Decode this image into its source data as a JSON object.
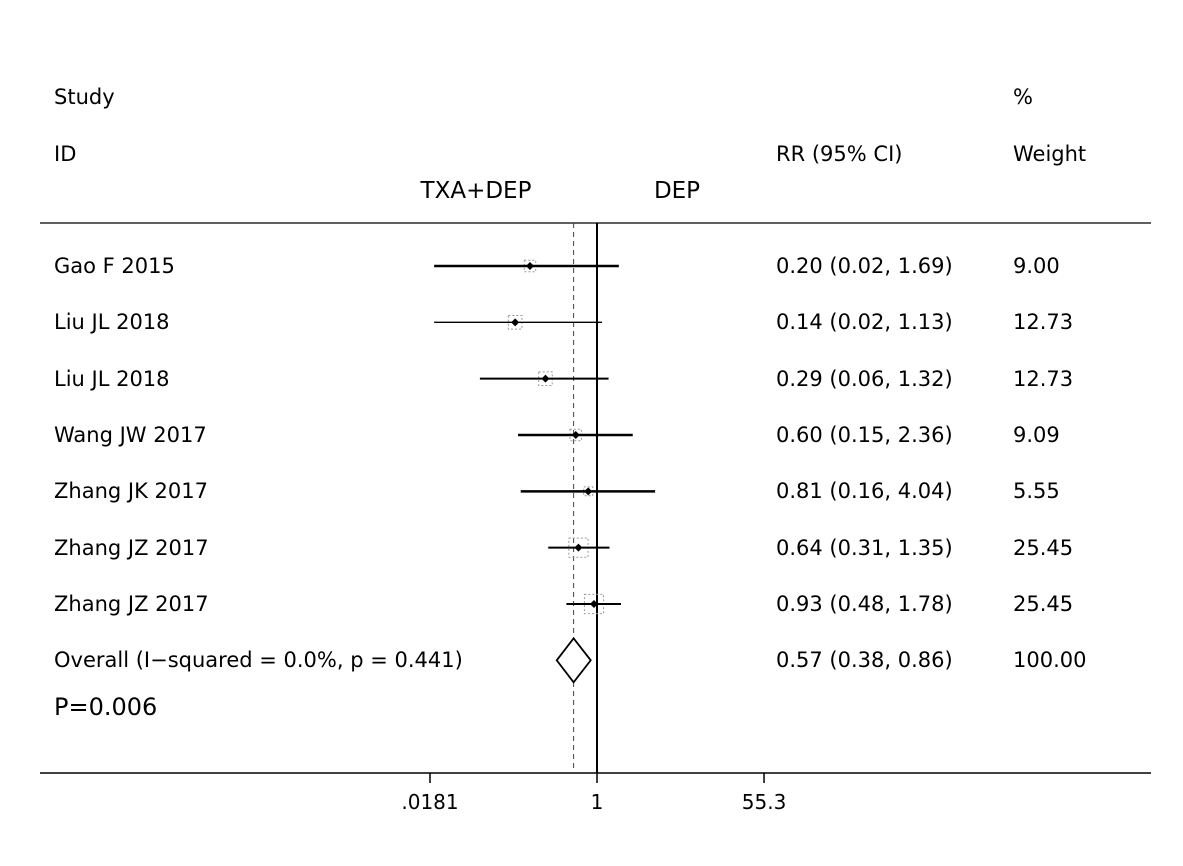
{
  "header": {
    "study": "Study",
    "id": "ID",
    "percent": "%",
    "rr_ci": "RR (95% CI)",
    "weight": "Weight",
    "left_group": "TXA+DEP",
    "right_group": "DEP"
  },
  "p_value_label": "P=0.006",
  "chart_data": {
    "type": "forest",
    "measure": "RR",
    "x_scale": "log",
    "x_ticks": [
      ".0181",
      "1",
      "55.3"
    ],
    "x_tick_values": [
      0.0181,
      1,
      55.3
    ],
    "null_value": 1,
    "studies": [
      {
        "label": "Gao F 2015",
        "rr": 0.2,
        "lower": 0.02,
        "upper": 1.69,
        "rr_ci_text": "0.20 (0.02, 1.69)",
        "weight": "9.00"
      },
      {
        "label": "Liu JL 2018",
        "rr": 0.14,
        "lower": 0.02,
        "upper": 1.13,
        "rr_ci_text": "0.14 (0.02, 1.13)",
        "weight": "12.73"
      },
      {
        "label": "Liu JL 2018",
        "rr": 0.29,
        "lower": 0.06,
        "upper": 1.32,
        "rr_ci_text": "0.29 (0.06, 1.32)",
        "weight": "12.73"
      },
      {
        "label": "Wang JW 2017",
        "rr": 0.6,
        "lower": 0.15,
        "upper": 2.36,
        "rr_ci_text": "0.60 (0.15, 2.36)",
        "weight": "9.09"
      },
      {
        "label": "Zhang JK 2017",
        "rr": 0.81,
        "lower": 0.16,
        "upper": 4.04,
        "rr_ci_text": "0.81 (0.16, 4.04)",
        "weight": "5.55"
      },
      {
        "label": "Zhang JZ 2017",
        "rr": 0.64,
        "lower": 0.31,
        "upper": 1.35,
        "rr_ci_text": "0.64 (0.31, 1.35)",
        "weight": "25.45"
      },
      {
        "label": "Zhang JZ 2017",
        "rr": 0.93,
        "lower": 0.48,
        "upper": 1.78,
        "rr_ci_text": "0.93 (0.48, 1.78)",
        "weight": "25.45"
      }
    ],
    "overall": {
      "label": "Overall  (I−squared = 0.0%, p = 0.441)",
      "rr": 0.57,
      "lower": 0.38,
      "upper": 0.86,
      "rr_ci_text": "0.57 (0.38, 0.86)",
      "weight": "100.00"
    }
  }
}
